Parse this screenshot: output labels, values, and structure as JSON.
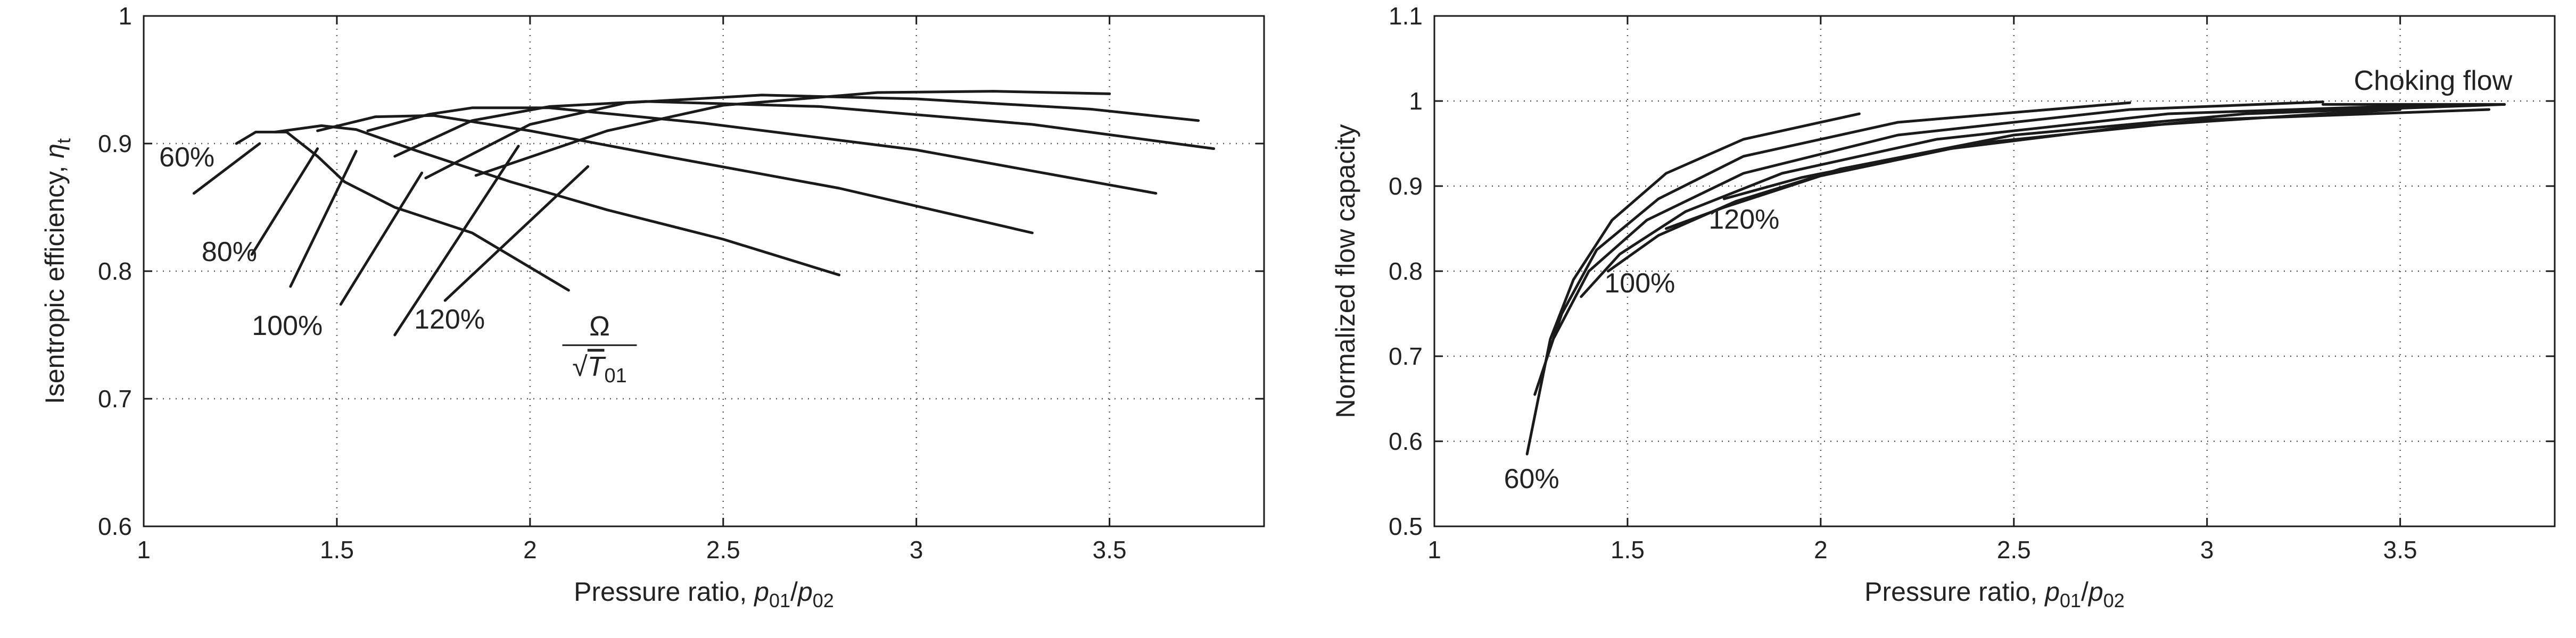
{
  "chart_data": [
    {
      "type": "line",
      "xlabel": "Pressure ratio, p01/p02",
      "ylabel": "Isentropic efficiency, ηt",
      "xlim": [
        1,
        3.9
      ],
      "ylim": [
        0.6,
        1.0
      ],
      "xticks": [
        "1",
        "1.5",
        "2",
        "2.5",
        "3",
        "3.5"
      ],
      "yticks": [
        "0.6",
        "0.7",
        "0.8",
        "0.9",
        "1"
      ],
      "grid": true,
      "series": [
        {
          "points": [
            [
              1.24,
              0.9
            ],
            [
              1.29,
              0.909
            ],
            [
              1.37,
              0.909
            ],
            [
              1.45,
              0.89
            ],
            [
              1.52,
              0.87
            ],
            [
              1.65,
              0.85
            ],
            [
              1.85,
              0.83
            ],
            [
              2.1,
              0.785
            ]
          ]
        },
        {
          "points": [
            [
              1.34,
              0.909
            ],
            [
              1.46,
              0.914
            ],
            [
              1.55,
              0.911
            ],
            [
              1.7,
              0.895
            ],
            [
              1.95,
              0.87
            ],
            [
              2.2,
              0.848
            ],
            [
              2.5,
              0.825
            ],
            [
              2.8,
              0.797
            ]
          ]
        },
        {
          "points": [
            [
              1.45,
              0.91
            ],
            [
              1.6,
              0.921
            ],
            [
              1.75,
              0.922
            ],
            [
              2.0,
              0.91
            ],
            [
              2.35,
              0.89
            ],
            [
              2.8,
              0.865
            ],
            [
              3.3,
              0.83
            ]
          ]
        },
        {
          "points": [
            [
              1.58,
              0.91
            ],
            [
              1.74,
              0.923
            ],
            [
              1.85,
              0.928
            ],
            [
              2.05,
              0.928
            ],
            [
              2.45,
              0.916
            ],
            [
              3.0,
              0.895
            ],
            [
              3.62,
              0.861
            ]
          ]
        },
        {
          "points": [
            [
              1.65,
              0.89
            ],
            [
              1.85,
              0.918
            ],
            [
              2.05,
              0.929
            ],
            [
              2.3,
              0.933
            ],
            [
              2.75,
              0.929
            ],
            [
              3.3,
              0.915
            ],
            [
              3.77,
              0.896
            ]
          ]
        },
        {
          "points": [
            [
              1.73,
              0.873
            ],
            [
              2.0,
              0.915
            ],
            [
              2.25,
              0.932
            ],
            [
              2.6,
              0.938
            ],
            [
              3.0,
              0.935
            ],
            [
              3.45,
              0.927
            ],
            [
              3.73,
              0.918
            ]
          ]
        },
        {
          "points": [
            [
              1.86,
              0.875
            ],
            [
              2.2,
              0.91
            ],
            [
              2.5,
              0.93
            ],
            [
              2.9,
              0.94
            ],
            [
              3.2,
              0.941
            ],
            [
              3.5,
              0.939
            ]
          ]
        }
      ],
      "speed_lines": [
        [
          [
            1.13,
            0.861
          ],
          [
            1.3,
            0.9
          ]
        ],
        [
          [
            1.28,
            0.813
          ],
          [
            1.45,
            0.896
          ]
        ],
        [
          [
            1.38,
            0.788
          ],
          [
            1.55,
            0.894
          ]
        ],
        [
          [
            1.51,
            0.774
          ],
          [
            1.72,
            0.877
          ]
        ],
        [
          [
            1.65,
            0.75
          ],
          [
            1.97,
            0.898
          ]
        ],
        [
          [
            1.78,
            0.777
          ],
          [
            2.15,
            0.882
          ]
        ]
      ],
      "annotations": [
        {
          "text": "60%",
          "x": 1.04,
          "y": 0.882
        },
        {
          "text": "80%",
          "x": 1.15,
          "y": 0.808
        },
        {
          "text": "100%",
          "x": 1.28,
          "y": 0.75
        },
        {
          "text": "120%",
          "x": 1.7,
          "y": 0.755
        }
      ],
      "fraction_label": {
        "numerator": "Ω",
        "denominator_sqrt": "√",
        "denominator": "T",
        "denominator_sub": "01"
      }
    },
    {
      "type": "line",
      "xlabel": "Pressure ratio, p01/p02",
      "ylabel": "Normalized flow capacity",
      "xlim": [
        1,
        3.9
      ],
      "ylim": [
        0.5,
        1.1
      ],
      "xticks": [
        "1",
        "1.5",
        "2",
        "2.5",
        "3",
        "3.5"
      ],
      "yticks": [
        "0.5",
        "0.6",
        "0.7",
        "0.8",
        "0.9",
        "1",
        "1.1"
      ],
      "grid": true,
      "series": [
        {
          "points": [
            [
              1.24,
              0.585
            ],
            [
              1.3,
              0.72
            ],
            [
              1.36,
              0.79
            ],
            [
              1.46,
              0.86
            ],
            [
              1.6,
              0.915
            ],
            [
              1.8,
              0.955
            ],
            [
              2.1,
              0.985
            ]
          ]
        },
        {
          "points": [
            [
              1.26,
              0.655
            ],
            [
              1.33,
              0.75
            ],
            [
              1.42,
              0.825
            ],
            [
              1.58,
              0.885
            ],
            [
              1.8,
              0.935
            ],
            [
              2.2,
              0.975
            ],
            [
              2.8,
              0.998
            ]
          ]
        },
        {
          "points": [
            [
              1.31,
              0.722
            ],
            [
              1.4,
              0.8
            ],
            [
              1.55,
              0.86
            ],
            [
              1.8,
              0.915
            ],
            [
              2.2,
              0.96
            ],
            [
              2.8,
              0.99
            ],
            [
              3.3,
              0.999
            ]
          ]
        },
        {
          "points": [
            [
              1.38,
              0.77
            ],
            [
              1.48,
              0.82
            ],
            [
              1.65,
              0.87
            ],
            [
              1.9,
              0.915
            ],
            [
              2.3,
              0.955
            ],
            [
              2.9,
              0.985
            ],
            [
              3.62,
              0.996
            ]
          ]
        },
        {
          "points": [
            [
              1.45,
              0.8
            ],
            [
              1.58,
              0.842
            ],
            [
              1.78,
              0.882
            ],
            [
              2.05,
              0.92
            ],
            [
              2.5,
              0.96
            ],
            [
              3.1,
              0.985
            ],
            [
              3.77,
              0.996
            ]
          ]
        },
        {
          "points": [
            [
              1.6,
              0.85
            ],
            [
              1.75,
              0.875
            ],
            [
              2.0,
              0.912
            ],
            [
              2.4,
              0.95
            ],
            [
              3.0,
              0.978
            ],
            [
              3.73,
              0.99
            ]
          ]
        },
        {
          "points": [
            [
              1.75,
              0.885
            ],
            [
              1.95,
              0.91
            ],
            [
              2.3,
              0.942
            ],
            [
              2.8,
              0.97
            ],
            [
              3.3,
              0.985
            ],
            [
              3.5,
              0.99
            ]
          ]
        }
      ],
      "choke_line": [
        [
          3.3,
          0.996
        ],
        [
          3.77,
          0.996
        ]
      ],
      "annotations": [
        {
          "text": "Choking flow",
          "x": 3.38,
          "y": 1.013
        },
        {
          "text": "120%",
          "x": 1.71,
          "y": 0.85
        },
        {
          "text": "100%",
          "x": 1.44,
          "y": 0.775
        },
        {
          "text": "60%",
          "x": 1.18,
          "y": 0.545
        }
      ]
    }
  ]
}
